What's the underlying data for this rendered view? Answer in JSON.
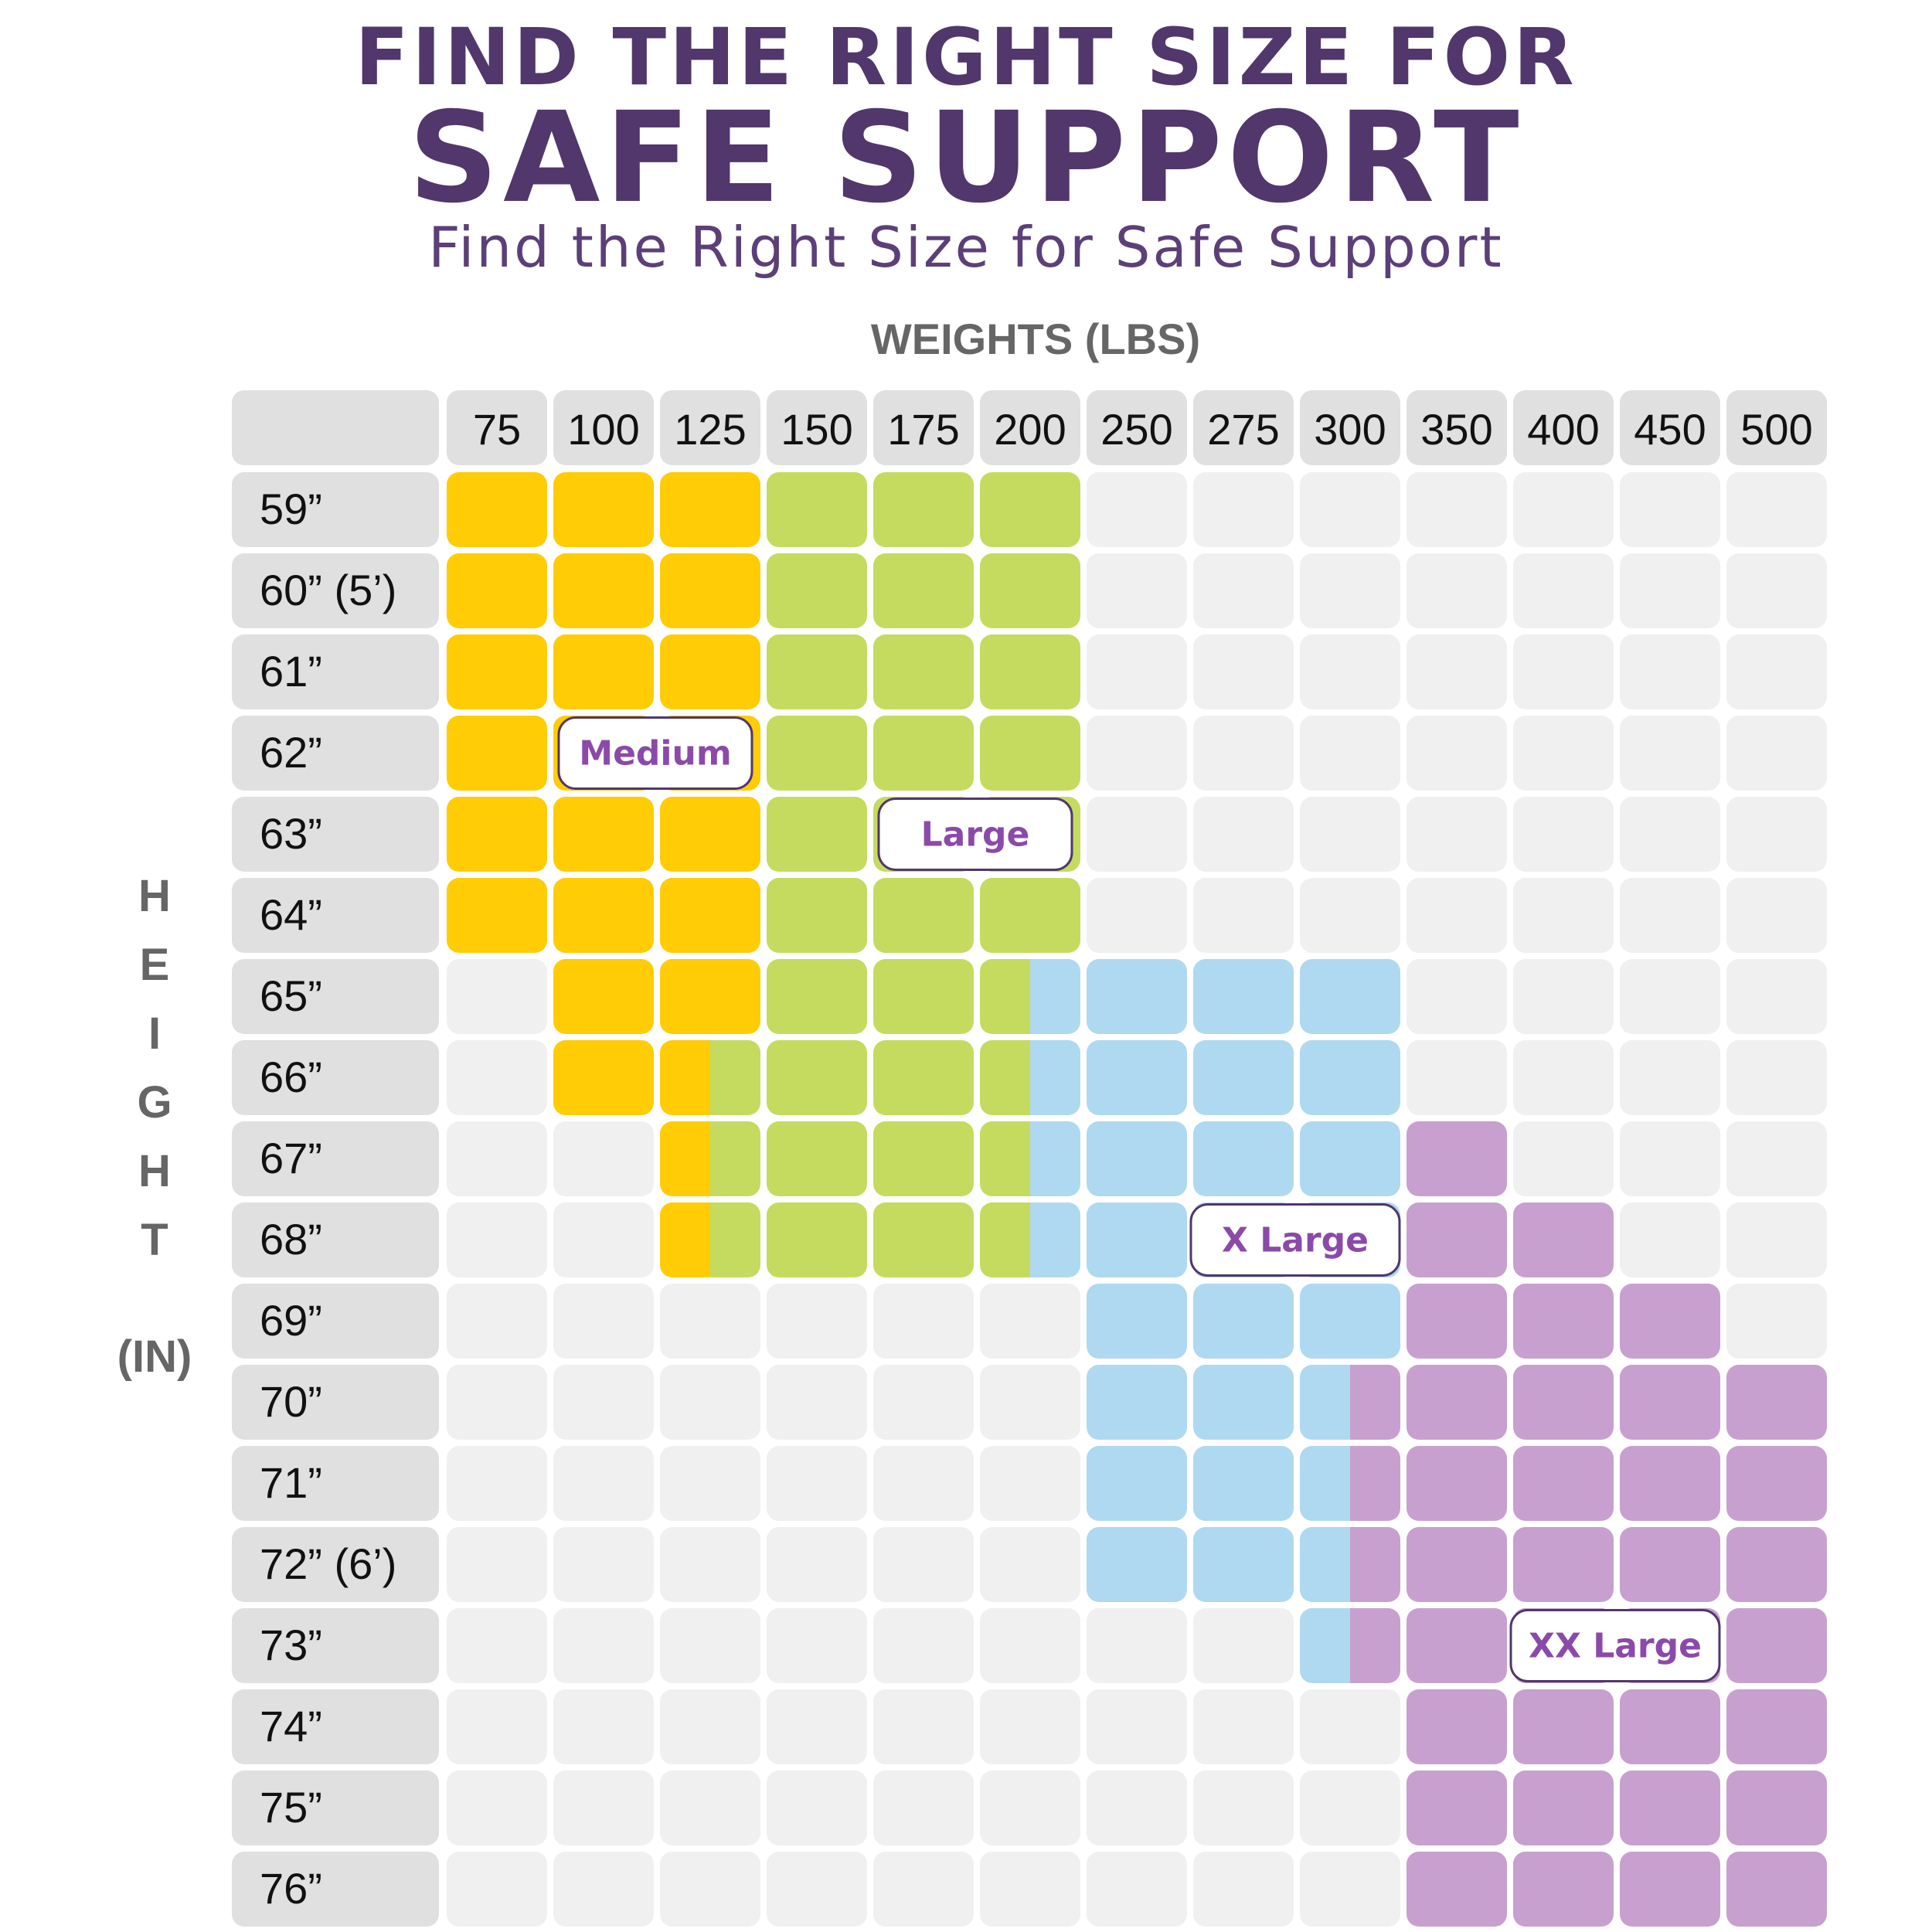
{
  "header": {
    "title_line1": "FIND THE RIGHT SIZE FOR",
    "title_line2": "SAFE SUPPORT",
    "subtitle": "Find the Right Size for Safe Support"
  },
  "colors": {
    "Medium": "#ffcc06",
    "Large": "#c5db5f",
    "X Large": "#afd9f0",
    "XX Large": "#c8a0cf",
    "empty": "#f0f0f0",
    "header_cell": "#e0e0e1",
    "label_border": "#51376c",
    "label_text": "#8b4aa9"
  },
  "chart_data": {
    "type": "heatmap",
    "xlabel": "WEIGHTS (LBS)",
    "ylabel_letters": [
      "H",
      "E",
      "I",
      "G",
      "H",
      "T"
    ],
    "ylabel_unit": "(IN)",
    "x": [
      "75",
      "100",
      "125",
      "150",
      "175",
      "200",
      "250",
      "275",
      "300",
      "350",
      "400",
      "450",
      "500"
    ],
    "y": [
      "59”",
      "60” (5’)",
      "61”",
      "62”",
      "63”",
      "64”",
      "65”",
      "66”",
      "67”",
      "68”",
      "69”",
      "70”",
      "71”",
      "72” (6’)",
      "73”",
      "74”",
      "75”",
      "76”"
    ],
    "sizes": [
      "Medium",
      "Large",
      "X Large",
      "XX Large"
    ],
    "size_labels": [
      {
        "text": "Medium",
        "row": 3,
        "col": 1
      },
      {
        "text": "Large",
        "row": 4,
        "col": 4
      },
      {
        "text": "X Large",
        "row": 9,
        "col": 7
      },
      {
        "text": "XX Large",
        "row": 14,
        "col": 10
      }
    ],
    "cells": [
      [
        [
          "Medium"
        ],
        [
          "Medium"
        ],
        [
          "Medium"
        ],
        [
          "Large"
        ],
        [
          "Large"
        ],
        [
          "Large"
        ],
        [],
        [],
        [],
        [],
        [],
        [],
        []
      ],
      [
        [
          "Medium"
        ],
        [
          "Medium"
        ],
        [
          "Medium"
        ],
        [
          "Large"
        ],
        [
          "Large"
        ],
        [
          "Large"
        ],
        [],
        [],
        [],
        [],
        [],
        [],
        []
      ],
      [
        [
          "Medium"
        ],
        [
          "Medium"
        ],
        [
          "Medium"
        ],
        [
          "Large"
        ],
        [
          "Large"
        ],
        [
          "Large"
        ],
        [],
        [],
        [],
        [],
        [],
        [],
        []
      ],
      [
        [
          "Medium"
        ],
        [
          "Medium"
        ],
        [
          "Medium"
        ],
        [
          "Large"
        ],
        [
          "Large"
        ],
        [
          "Large"
        ],
        [],
        [],
        [],
        [],
        [],
        [],
        []
      ],
      [
        [
          "Medium"
        ],
        [
          "Medium"
        ],
        [
          "Medium"
        ],
        [
          "Large"
        ],
        [
          "Large"
        ],
        [
          "Large"
        ],
        [],
        [],
        [],
        [],
        [],
        [],
        []
      ],
      [
        [
          "Medium"
        ],
        [
          "Medium"
        ],
        [
          "Medium"
        ],
        [
          "Large"
        ],
        [
          "Large"
        ],
        [
          "Large"
        ],
        [],
        [],
        [],
        [],
        [],
        [],
        []
      ],
      [
        [],
        [
          "Medium"
        ],
        [
          "Medium"
        ],
        [
          "Large"
        ],
        [
          "Large"
        ],
        [
          "Large",
          "X Large"
        ],
        [
          "X Large"
        ],
        [
          "X Large"
        ],
        [
          "X Large"
        ],
        [],
        [],
        [],
        []
      ],
      [
        [],
        [
          "Medium"
        ],
        [
          "Medium",
          "Large"
        ],
        [
          "Large"
        ],
        [
          "Large"
        ],
        [
          "Large",
          "X Large"
        ],
        [
          "X Large"
        ],
        [
          "X Large"
        ],
        [
          "X Large"
        ],
        [],
        [],
        [],
        []
      ],
      [
        [],
        [],
        [
          "Medium",
          "Large"
        ],
        [
          "Large"
        ],
        [
          "Large"
        ],
        [
          "Large",
          "X Large"
        ],
        [
          "X Large"
        ],
        [
          "X Large"
        ],
        [
          "X Large"
        ],
        [
          "XX Large"
        ],
        [],
        [],
        []
      ],
      [
        [],
        [],
        [
          "Medium",
          "Large"
        ],
        [
          "Large"
        ],
        [
          "Large"
        ],
        [
          "Large",
          "X Large"
        ],
        [
          "X Large"
        ],
        [
          "X Large"
        ],
        [
          "X Large"
        ],
        [
          "XX Large"
        ],
        [
          "XX Large"
        ],
        [],
        []
      ],
      [
        [],
        [],
        [],
        [],
        [],
        [],
        [
          "X Large"
        ],
        [
          "X Large"
        ],
        [
          "X Large"
        ],
        [
          "XX Large"
        ],
        [
          "XX Large"
        ],
        [
          "XX Large"
        ],
        []
      ],
      [
        [],
        [],
        [],
        [],
        [],
        [],
        [
          "X Large"
        ],
        [
          "X Large"
        ],
        [
          "X Large",
          "XX Large"
        ],
        [
          "XX Large"
        ],
        [
          "XX Large"
        ],
        [
          "XX Large"
        ],
        [
          "XX Large"
        ]
      ],
      [
        [],
        [],
        [],
        [],
        [],
        [],
        [
          "X Large"
        ],
        [
          "X Large"
        ],
        [
          "X Large",
          "XX Large"
        ],
        [
          "XX Large"
        ],
        [
          "XX Large"
        ],
        [
          "XX Large"
        ],
        [
          "XX Large"
        ]
      ],
      [
        [],
        [],
        [],
        [],
        [],
        [],
        [
          "X Large"
        ],
        [
          "X Large"
        ],
        [
          "X Large",
          "XX Large"
        ],
        [
          "XX Large"
        ],
        [
          "XX Large"
        ],
        [
          "XX Large"
        ],
        [
          "XX Large"
        ]
      ],
      [
        [],
        [],
        [],
        [],
        [],
        [],
        [],
        [],
        [
          "X Large",
          "XX Large"
        ],
        [
          "XX Large"
        ],
        [
          "XX Large"
        ],
        [
          "XX Large"
        ],
        [
          "XX Large"
        ]
      ],
      [
        [],
        [],
        [],
        [],
        [],
        [],
        [],
        [],
        [],
        [
          "XX Large"
        ],
        [
          "XX Large"
        ],
        [
          "XX Large"
        ],
        [
          "XX Large"
        ]
      ],
      [
        [],
        [],
        [],
        [],
        [],
        [],
        [],
        [],
        [],
        [
          "XX Large"
        ],
        [
          "XX Large"
        ],
        [
          "XX Large"
        ],
        [
          "XX Large"
        ]
      ],
      [
        [],
        [],
        [],
        [],
        [],
        [],
        [],
        [],
        [],
        [
          "XX Large"
        ],
        [
          "XX Large"
        ],
        [
          "XX Large"
        ],
        [
          "XX Large"
        ]
      ]
    ]
  }
}
